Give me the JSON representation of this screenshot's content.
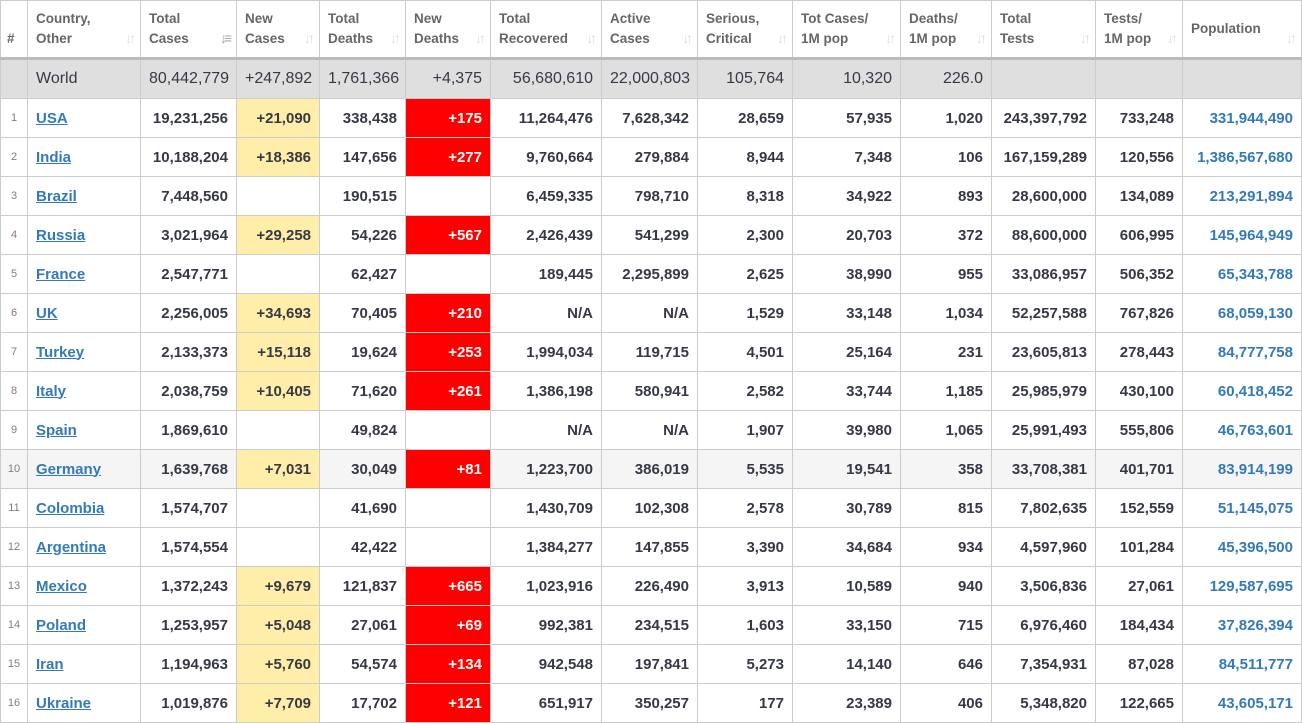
{
  "headers": [
    [
      "#",
      ""
    ],
    [
      "Country,",
      "Other"
    ],
    [
      "Total",
      "Cases"
    ],
    [
      "New",
      "Cases"
    ],
    [
      "Total",
      "Deaths"
    ],
    [
      "New",
      "Deaths"
    ],
    [
      "Total",
      "Recovered"
    ],
    [
      "Active",
      "Cases"
    ],
    [
      "Serious,",
      "Critical"
    ],
    [
      "Tot Cases/",
      "1M pop"
    ],
    [
      "Deaths/",
      "1M pop"
    ],
    [
      "Total",
      "Tests"
    ],
    [
      "Tests/",
      "1M pop"
    ],
    [
      "",
      "Population"
    ]
  ],
  "sorted_column": "Total Cases",
  "colors": {
    "new_cases_bg": "#ffeeaa",
    "new_deaths_bg": "#ff0000",
    "link": "#337ab7",
    "world_bg": "#dfdfdf"
  },
  "world": [
    "",
    "World",
    "80,442,779",
    "+247,892",
    "1,761,366",
    "+4,375",
    "56,680,610",
    "22,000,803",
    "105,764",
    "10,320",
    "226.0",
    "",
    "",
    ""
  ],
  "rows": [
    [
      "1",
      "USA",
      "19,231,256",
      "+21,090",
      "338,438",
      "+175",
      "11,264,476",
      "7,628,342",
      "28,659",
      "57,935",
      "1,020",
      "243,397,792",
      "733,248",
      "331,944,490"
    ],
    [
      "2",
      "India",
      "10,188,204",
      "+18,386",
      "147,656",
      "+277",
      "9,760,664",
      "279,884",
      "8,944",
      "7,348",
      "106",
      "167,159,289",
      "120,556",
      "1,386,567,680"
    ],
    [
      "3",
      "Brazil",
      "7,448,560",
      "",
      "190,515",
      "",
      "6,459,335",
      "798,710",
      "8,318",
      "34,922",
      "893",
      "28,600,000",
      "134,089",
      "213,291,894"
    ],
    [
      "4",
      "Russia",
      "3,021,964",
      "+29,258",
      "54,226",
      "+567",
      "2,426,439",
      "541,299",
      "2,300",
      "20,703",
      "372",
      "88,600,000",
      "606,995",
      "145,964,949"
    ],
    [
      "5",
      "France",
      "2,547,771",
      "",
      "62,427",
      "",
      "189,445",
      "2,295,899",
      "2,625",
      "38,990",
      "955",
      "33,086,957",
      "506,352",
      "65,343,788"
    ],
    [
      "6",
      "UK",
      "2,256,005",
      "+34,693",
      "70,405",
      "+210",
      "N/A",
      "N/A",
      "1,529",
      "33,148",
      "1,034",
      "52,257,588",
      "767,826",
      "68,059,130"
    ],
    [
      "7",
      "Turkey",
      "2,133,373",
      "+15,118",
      "19,624",
      "+253",
      "1,994,034",
      "119,715",
      "4,501",
      "25,164",
      "231",
      "23,605,813",
      "278,443",
      "84,777,758"
    ],
    [
      "8",
      "Italy",
      "2,038,759",
      "+10,405",
      "71,620",
      "+261",
      "1,386,198",
      "580,941",
      "2,582",
      "33,744",
      "1,185",
      "25,985,979",
      "430,100",
      "60,418,452"
    ],
    [
      "9",
      "Spain",
      "1,869,610",
      "",
      "49,824",
      "",
      "N/A",
      "N/A",
      "1,907",
      "39,980",
      "1,065",
      "25,991,493",
      "555,806",
      "46,763,601"
    ],
    [
      "10",
      "Germany",
      "1,639,768",
      "+7,031",
      "30,049",
      "+81",
      "1,223,700",
      "386,019",
      "5,535",
      "19,541",
      "358",
      "33,708,381",
      "401,701",
      "83,914,199"
    ],
    [
      "11",
      "Colombia",
      "1,574,707",
      "",
      "41,690",
      "",
      "1,430,709",
      "102,308",
      "2,578",
      "30,789",
      "815",
      "7,802,635",
      "152,559",
      "51,145,075"
    ],
    [
      "12",
      "Argentina",
      "1,574,554",
      "",
      "42,422",
      "",
      "1,384,277",
      "147,855",
      "3,390",
      "34,684",
      "934",
      "4,597,960",
      "101,284",
      "45,396,500"
    ],
    [
      "13",
      "Mexico",
      "1,372,243",
      "+9,679",
      "121,837",
      "+665",
      "1,023,916",
      "226,490",
      "3,913",
      "10,589",
      "940",
      "3,506,836",
      "27,061",
      "129,587,695"
    ],
    [
      "14",
      "Poland",
      "1,253,957",
      "+5,048",
      "27,061",
      "+69",
      "992,381",
      "234,515",
      "1,603",
      "33,150",
      "715",
      "6,976,460",
      "184,434",
      "37,826,394"
    ],
    [
      "15",
      "Iran",
      "1,194,963",
      "+5,760",
      "54,574",
      "+134",
      "942,548",
      "197,841",
      "5,273",
      "14,140",
      "646",
      "7,354,931",
      "87,028",
      "84,511,777"
    ],
    [
      "16",
      "Ukraine",
      "1,019,876",
      "+7,709",
      "17,702",
      "+121",
      "651,917",
      "350,257",
      "177",
      "23,389",
      "406",
      "5,348,820",
      "122,665",
      "43,605,171"
    ]
  ]
}
